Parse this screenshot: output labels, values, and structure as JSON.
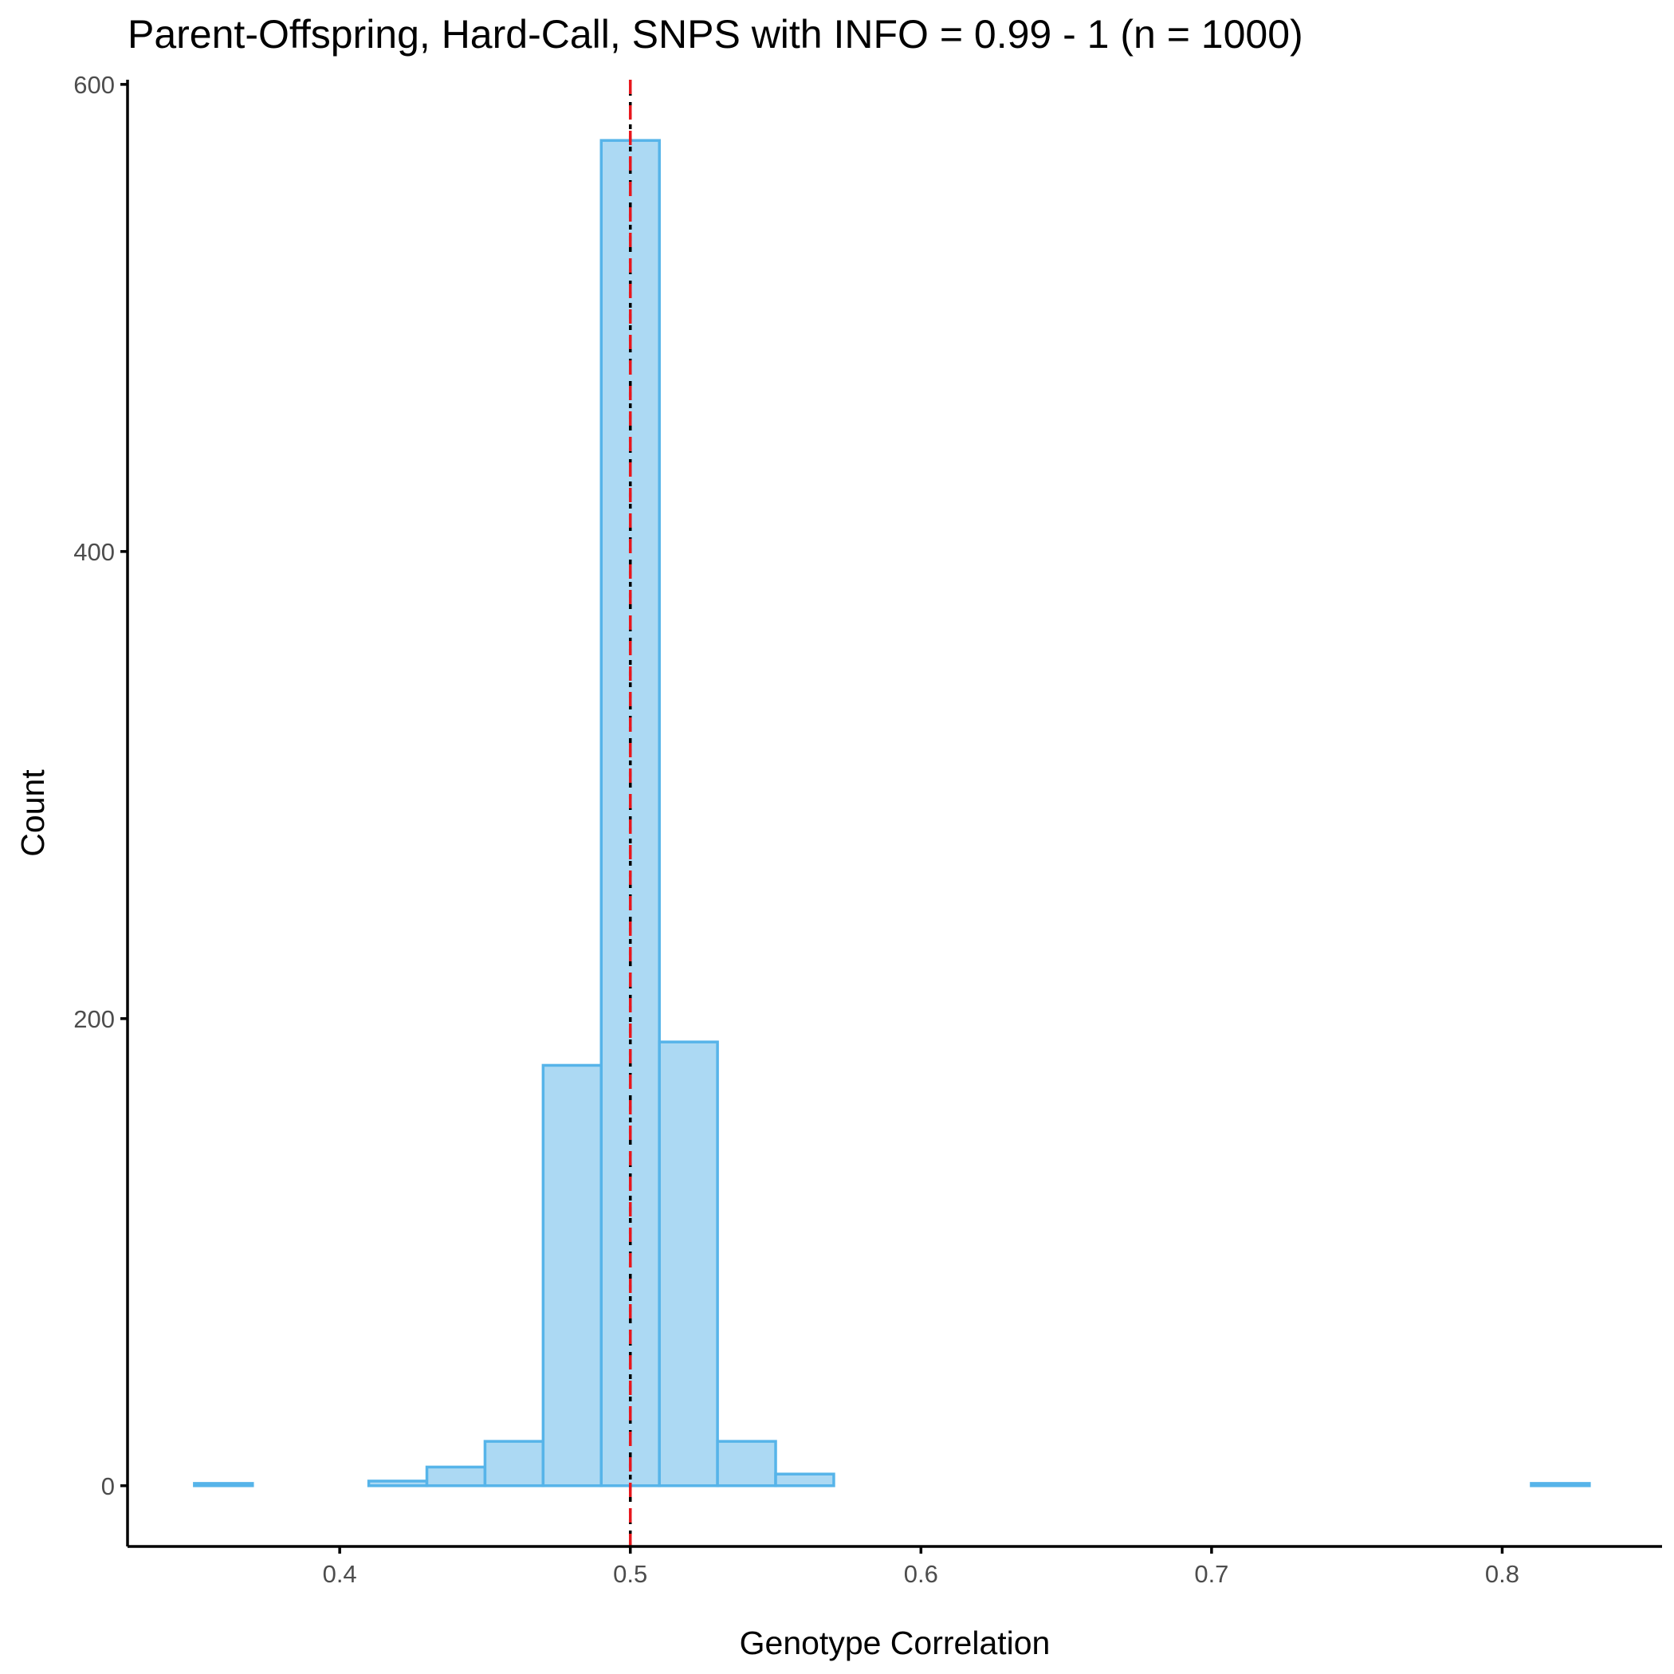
{
  "chart_data": {
    "type": "bar",
    "title": "Parent-Offspring, Hard-Call, SNPS with INFO = 0.99 - 1 (n = 1000)",
    "xlabel": "Genotype Correlation",
    "ylabel": "Count",
    "xlim": [
      0.327,
      0.855
    ],
    "ylim": [
      -26,
      602
    ],
    "x_ticks": [
      {
        "value": 0.4,
        "label": "0.4"
      },
      {
        "value": 0.5,
        "label": "0.5"
      },
      {
        "value": 0.6,
        "label": "0.6"
      },
      {
        "value": 0.7,
        "label": "0.7"
      },
      {
        "value": 0.8,
        "label": "0.8"
      }
    ],
    "y_ticks": [
      {
        "value": 0,
        "label": "0"
      },
      {
        "value": 200,
        "label": "200"
      },
      {
        "value": 400,
        "label": "400"
      },
      {
        "value": 600,
        "label": "600"
      }
    ],
    "bins": [
      {
        "x0": 0.35,
        "x1": 0.37,
        "count": 1
      },
      {
        "x0": 0.37,
        "x1": 0.39,
        "count": 0
      },
      {
        "x0": 0.39,
        "x1": 0.41,
        "count": 0
      },
      {
        "x0": 0.41,
        "x1": 0.43,
        "count": 2
      },
      {
        "x0": 0.43,
        "x1": 0.45,
        "count": 8
      },
      {
        "x0": 0.45,
        "x1": 0.47,
        "count": 19
      },
      {
        "x0": 0.47,
        "x1": 0.49,
        "count": 180
      },
      {
        "x0": 0.49,
        "x1": 0.51,
        "count": 576
      },
      {
        "x0": 0.51,
        "x1": 0.53,
        "count": 190
      },
      {
        "x0": 0.53,
        "x1": 0.55,
        "count": 19
      },
      {
        "x0": 0.55,
        "x1": 0.57,
        "count": 5
      },
      {
        "x0": 0.57,
        "x1": 0.59,
        "count": 0
      },
      {
        "x0": 0.59,
        "x1": 0.61,
        "count": 0
      },
      {
        "x0": 0.61,
        "x1": 0.63,
        "count": 0
      },
      {
        "x0": 0.63,
        "x1": 0.65,
        "count": 0
      },
      {
        "x0": 0.65,
        "x1": 0.67,
        "count": 0
      },
      {
        "x0": 0.67,
        "x1": 0.69,
        "count": 0
      },
      {
        "x0": 0.69,
        "x1": 0.71,
        "count": 0
      },
      {
        "x0": 0.71,
        "x1": 0.73,
        "count": 0
      },
      {
        "x0": 0.73,
        "x1": 0.75,
        "count": 0
      },
      {
        "x0": 0.75,
        "x1": 0.77,
        "count": 0
      },
      {
        "x0": 0.77,
        "x1": 0.79,
        "count": 0
      },
      {
        "x0": 0.79,
        "x1": 0.81,
        "count": 0
      },
      {
        "x0": 0.81,
        "x1": 0.83,
        "count": 1
      }
    ],
    "reference_lines": [
      {
        "x": 0.5,
        "color": "#000000",
        "style": "dotted"
      },
      {
        "x": 0.5,
        "color": "#e8161c",
        "style": "dashed"
      }
    ],
    "colors": {
      "fill": "#acd9f3",
      "stroke": "#56b4e9"
    },
    "grid": false,
    "legend": "none"
  }
}
